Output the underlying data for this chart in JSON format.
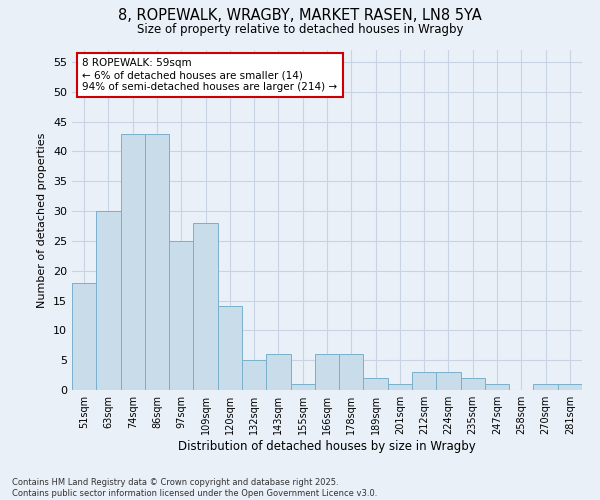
{
  "title1": "8, ROPEWALK, WRAGBY, MARKET RASEN, LN8 5YA",
  "title2": "Size of property relative to detached houses in Wragby",
  "xlabel": "Distribution of detached houses by size in Wragby",
  "ylabel": "Number of detached properties",
  "categories": [
    "51sqm",
    "63sqm",
    "74sqm",
    "86sqm",
    "97sqm",
    "109sqm",
    "120sqm",
    "132sqm",
    "143sqm",
    "155sqm",
    "166sqm",
    "178sqm",
    "189sqm",
    "201sqm",
    "212sqm",
    "224sqm",
    "235sqm",
    "247sqm",
    "258sqm",
    "270sqm",
    "281sqm"
  ],
  "values": [
    18,
    30,
    43,
    43,
    25,
    28,
    14,
    5,
    6,
    1,
    6,
    6,
    2,
    1,
    3,
    3,
    2,
    1,
    0,
    1,
    1
  ],
  "bar_color": "#c9dcea",
  "bar_edge_color": "#7ab0cc",
  "annotation_box_text": "8 ROPEWALK: 59sqm\n← 6% of detached houses are smaller (14)\n94% of semi-detached houses are larger (214) →",
  "annotation_box_color": "#ffffff",
  "annotation_box_edge_color": "#cc0000",
  "grid_color": "#c8d4e4",
  "bg_color": "#eaf0f8",
  "footnote": "Contains HM Land Registry data © Crown copyright and database right 2025.\nContains public sector information licensed under the Open Government Licence v3.0.",
  "ylim": [
    0,
    57
  ],
  "yticks": [
    0,
    5,
    10,
    15,
    20,
    25,
    30,
    35,
    40,
    45,
    50,
    55
  ]
}
